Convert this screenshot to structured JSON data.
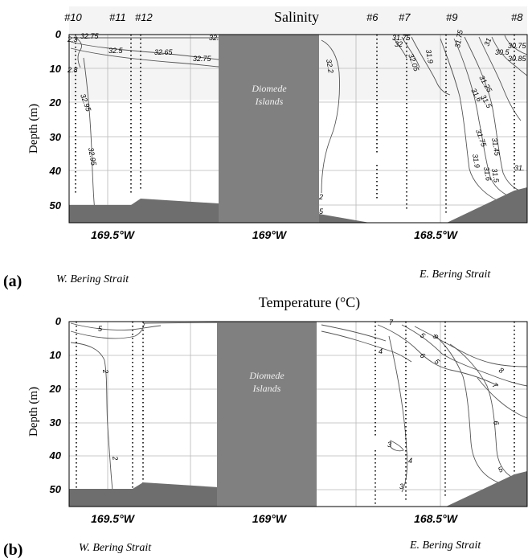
{
  "chart_data": [
    {
      "panel_label": "(a)",
      "title": "Salinity",
      "type": "contour",
      "ylabel": "Depth (m)",
      "yticks": [
        0,
        10,
        20,
        30,
        40,
        50
      ],
      "ylim": [
        0,
        55
      ],
      "xticks": [
        "169.5°W",
        "169°W",
        "168.5°W"
      ],
      "stations": [
        "#10",
        "#11",
        "#12",
        "#6",
        "#7",
        "#9",
        "#8"
      ],
      "island_label": [
        "Diomede",
        "Islands"
      ],
      "region_left": "W. Bering Strait",
      "region_right": "E. Bering Strait",
      "contour_labels": [
        "2.3",
        "32.75",
        "32.5",
        "32.65",
        "32.75",
        "32.",
        "2.8",
        "32.95",
        "32.95",
        "32.2",
        "2",
        "5",
        "31.75",
        "32",
        "32.05",
        "31.9",
        "31.75",
        "31",
        "30.5",
        "30.75",
        "30.85",
        "31.25",
        "31.6",
        "31.5",
        "31.75",
        "31.45",
        "31.9",
        "31.5",
        "31.6",
        "31."
      ]
    },
    {
      "panel_label": "(b)",
      "title": "Temperature (°C)",
      "type": "contour",
      "ylabel": "Depth (m)",
      "yticks": [
        0,
        10,
        20,
        30,
        40,
        50
      ],
      "ylim": [
        0,
        55
      ],
      "xticks": [
        "169.5°W",
        "169°W",
        "168.5°W"
      ],
      "island_label": [
        "Diomede",
        "Islands"
      ],
      "region_left": "W. Bering Strait",
      "region_right": "E. Bering Strait",
      "contour_labels": [
        "5",
        "2",
        "2",
        "7",
        "9",
        "5",
        "4",
        "6",
        "5",
        "8",
        "7",
        "6",
        "3",
        "4",
        "3",
        "5"
      ]
    }
  ]
}
